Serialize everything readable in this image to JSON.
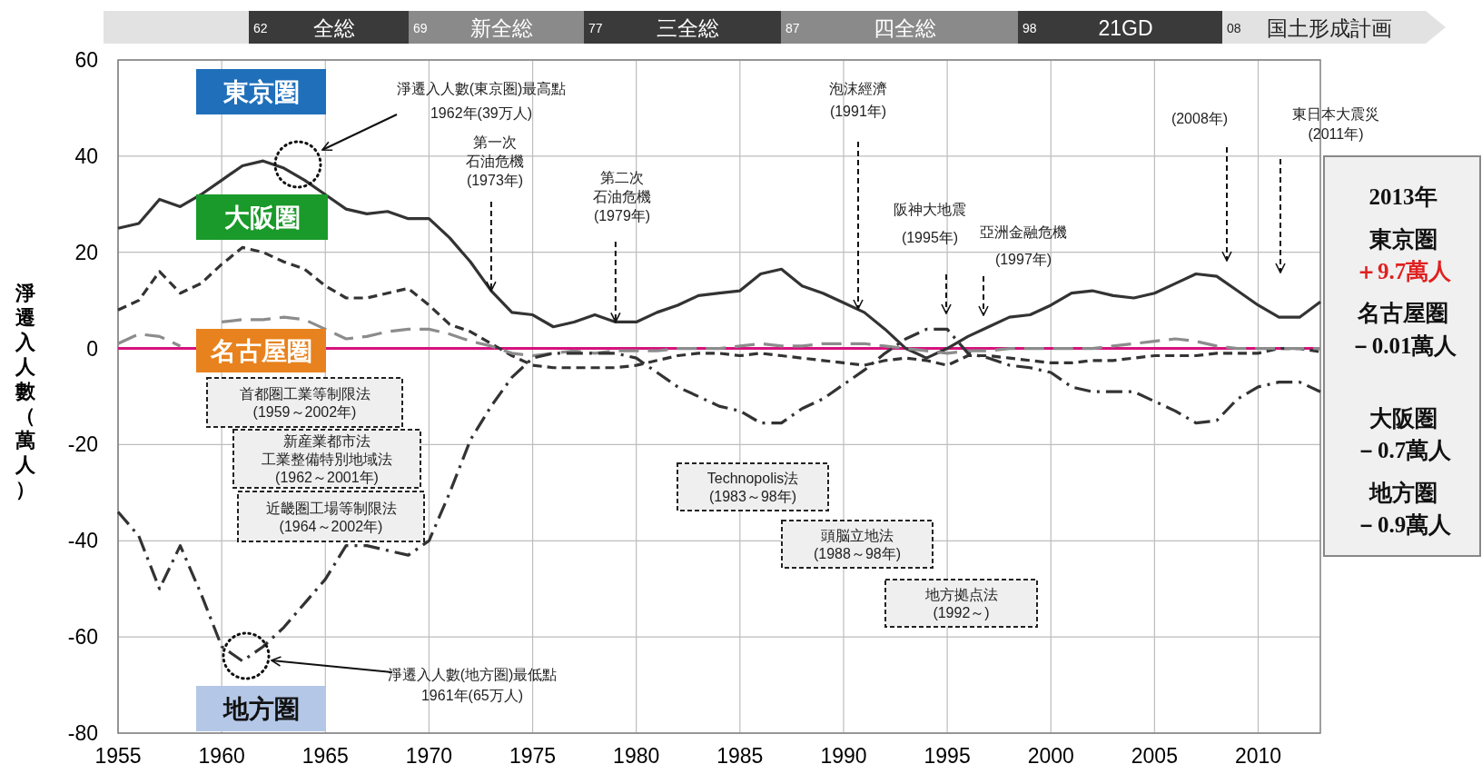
{
  "chart_data": {
    "type": "line",
    "ylabel": "淨遷入人數（萬人）",
    "x": [
      1955,
      1956,
      1957,
      1958,
      1959,
      1960,
      1961,
      1962,
      1963,
      1964,
      1965,
      1966,
      1967,
      1968,
      1969,
      1970,
      1971,
      1972,
      1973,
      1974,
      1975,
      1976,
      1977,
      1978,
      1979,
      1980,
      1981,
      1982,
      1983,
      1984,
      1985,
      1986,
      1987,
      1988,
      1989,
      1990,
      1991,
      1992,
      1993,
      1994,
      1995,
      1996,
      1997,
      1998,
      1999,
      2000,
      2001,
      2002,
      2003,
      2004,
      2005,
      2006,
      2007,
      2008,
      2009,
      2010,
      2011,
      2012,
      2013
    ],
    "series": [
      {
        "name": "東京圏",
        "color": "#333333",
        "line_style": "solid",
        "values": [
          25,
          26,
          31,
          29.5,
          32,
          35,
          38,
          39,
          37.5,
          35,
          32,
          29,
          28,
          28.5,
          27,
          27,
          23,
          18,
          12,
          7.5,
          7,
          4.5,
          5.5,
          7,
          5.5,
          5.5,
          7.5,
          9,
          11,
          11.5,
          12,
          15.5,
          16.5,
          13,
          11.5,
          9.5,
          7.5,
          4,
          0,
          -2,
          0,
          2.5,
          4.5,
          6.5,
          7,
          9,
          11.5,
          12,
          11,
          10.5,
          11.5,
          13.5,
          15.5,
          15,
          12,
          9,
          6.5,
          6.5,
          9.7
        ]
      },
      {
        "name": "大阪圏",
        "color": "#333333",
        "line_style": "dashed",
        "values": [
          8,
          10,
          16,
          11.5,
          13.5,
          17.5,
          21,
          20,
          18,
          16.5,
          13,
          10.5,
          10.5,
          11.5,
          12.5,
          9,
          5,
          3.5,
          1,
          -1.5,
          -3.5,
          -4,
          -4,
          -4,
          -4,
          -3.5,
          -2.5,
          -1.5,
          -1,
          -1,
          -1.5,
          -1,
          -1.5,
          -2,
          -2.5,
          -3,
          -3.5,
          -2.5,
          -2,
          -2.5,
          -3.5,
          -1.5,
          -1.5,
          -2,
          -2.5,
          -3,
          -3,
          -2.5,
          -2.5,
          -2,
          -1.5,
          -1.5,
          -1.5,
          -1,
          -1,
          -1,
          0,
          0,
          -0.7
        ]
      },
      {
        "name": "名古屋圏",
        "color": "#8c8c8c",
        "line_style": "longdash",
        "values": [
          1,
          3,
          2.5,
          0.5,
          null,
          5.5,
          6,
          6,
          6.5,
          6,
          4,
          2,
          2.5,
          3.5,
          4,
          4,
          3,
          1.5,
          0.5,
          -1,
          -1.5,
          -1,
          -0.5,
          -1,
          -0.5,
          -0.5,
          -0.5,
          0,
          0,
          0,
          0.5,
          1,
          0.5,
          0.5,
          1,
          1,
          1,
          0.5,
          0,
          -0.5,
          -1,
          -0.5,
          -0.5,
          0,
          0,
          0,
          0,
          0,
          0.5,
          1,
          1.5,
          2,
          1.5,
          0.5,
          0,
          0,
          0,
          0,
          0
        ]
      },
      {
        "name": "地方圏",
        "color": "#333333",
        "line_style": "dashdot",
        "values": [
          -34,
          -39,
          -50,
          -41,
          -51,
          -62,
          -65,
          -62,
          -58,
          -53,
          -48,
          -41,
          -41,
          -42,
          -43,
          -40,
          -30,
          -19,
          -12,
          -6,
          -2,
          -1,
          -1,
          -1,
          -1,
          -2,
          -5,
          -8,
          -10,
          -12,
          -13,
          -15.5,
          -15.5,
          -12.5,
          -10.5,
          -7.5,
          -4.5,
          -1,
          2,
          4,
          4,
          -1,
          -2,
          -3.5,
          -4,
          -5,
          -8,
          -9,
          -9,
          -9,
          -11,
          -13,
          -15.5,
          -15,
          -10.5,
          -8,
          -7,
          -7,
          -9
        ]
      }
    ],
    "xlim": [
      1955,
      2013
    ],
    "xticks": [
      1955,
      1960,
      1965,
      1970,
      1975,
      1980,
      1985,
      1990,
      1995,
      2000,
      2005,
      2010
    ],
    "ylim": [
      -80,
      60
    ],
    "yticks": [
      -80,
      -60,
      -40,
      -20,
      0,
      20,
      40,
      60
    ],
    "grid": true,
    "legend": false,
    "ref_lines": [
      {
        "axis": "y",
        "value": 0,
        "color": "#d6127d"
      }
    ],
    "annotations": [
      "淨遷入人數(東京圏)最高點1962年(39万人)",
      {
        "text": "第一次石油危機(1973年)",
        "x": 1973,
        "y": 12
      },
      {
        "text": "第二次石油危機(1979年)",
        "x": 1979,
        "y": 5.5
      },
      "泡沫經濟(1991年)",
      "阪神大地震(1995年)",
      "亞洲金融危機(1997年)",
      "(2008年)",
      "東日本大震災(2011年)",
      "淨遷入人數(地方圏)最低點1961年(65万人)",
      "首都圏工業等制限法(1959～2002年)",
      "新産業都市法工業整備特別地域法(1962～2001年)",
      "近畿圏工場等制限法(1964～2002年)",
      "Technopolis法(1983～98年)",
      "頭脳立地法(1988～98年)",
      "地方拠点法(1992～)",
      "2013年",
      "東京圏",
      "＋9.7萬人",
      "名古屋圏",
      "－0.01萬人",
      "大阪圏",
      "－0.7萬人",
      "地方圏",
      "－0.9萬人",
      "62",
      "全総",
      "69",
      "新全総",
      "77",
      "三全総",
      "87",
      "四全総",
      "98",
      "21GD",
      "08",
      "国土形成計画"
    ]
  }
}
